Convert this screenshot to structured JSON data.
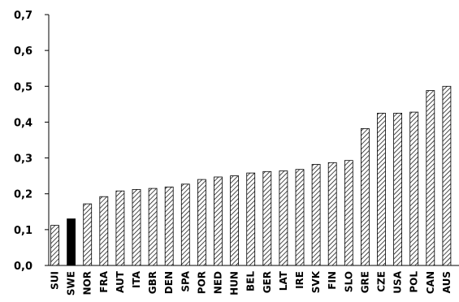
{
  "chart_data": {
    "type": "bar",
    "categories": [
      "SUI",
      "SWE",
      "NOR",
      "FRA",
      "AUT",
      "ITA",
      "GBR",
      "DEN",
      "SPA",
      "POR",
      "NED",
      "HUN",
      "BEL",
      "GER",
      "LAT",
      "IRE",
      "SVK",
      "FIN",
      "SLO",
      "GRE",
      "CZE",
      "USA",
      "POL",
      "CAN",
      "AUS"
    ],
    "values": [
      0.112,
      0.13,
      0.172,
      0.192,
      0.208,
      0.212,
      0.215,
      0.219,
      0.227,
      0.24,
      0.247,
      0.25,
      0.258,
      0.262,
      0.264,
      0.268,
      0.282,
      0.287,
      0.293,
      0.382,
      0.425,
      0.425,
      0.428,
      0.488,
      0.5
    ],
    "highlight": "SWE",
    "yticks": [
      "0,0",
      "0,1",
      "0,2",
      "0,3",
      "0,4",
      "0,5",
      "0,6",
      "0,7"
    ],
    "ylim": [
      0,
      0.7
    ],
    "title": "",
    "xlabel": "",
    "ylabel": "",
    "colors": {
      "bar_fill": "#ffffff",
      "bar_hatch": "#000000",
      "highlight": "#000000"
    }
  }
}
